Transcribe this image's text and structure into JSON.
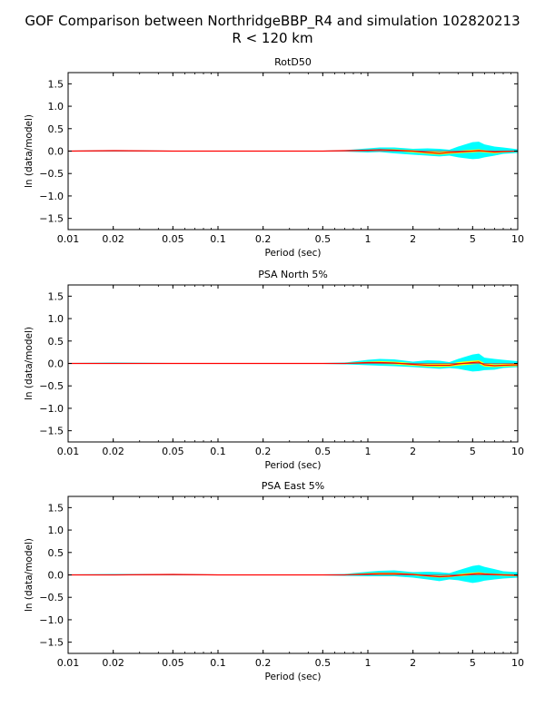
{
  "figure": {
    "title_line1": "GOF Comparison between NorthridgeBBP_R4 and simulation 102820213",
    "title_line2": "R < 120 km"
  },
  "colors": {
    "band_outer": "#00ffff",
    "band_inner": "#ffff00",
    "mean_line": "#ff0000",
    "zero_line": "#7f7f7f"
  },
  "chart_data": [
    {
      "type": "area",
      "title": "RotD50",
      "xlabel": "Period (sec)",
      "ylabel": "ln (data/model)",
      "xscale": "log",
      "xlim": [
        0.01,
        10
      ],
      "ylim": [
        -1.75,
        1.75
      ],
      "xticks": [
        0.01,
        0.02,
        0.05,
        0.1,
        0.2,
        0.5,
        1,
        2,
        5,
        10
      ],
      "xtick_labels": [
        "0.01",
        "0.02",
        "0.05",
        "0.1",
        "0.2",
        "0.5",
        "1",
        "2",
        "5",
        "10"
      ],
      "yticks": [
        -1.5,
        -1.0,
        -0.5,
        0.0,
        0.5,
        1.0,
        1.5
      ],
      "ytick_labels": [
        "−1.5",
        "−1.0",
        "−0.5",
        "0.0",
        "0.5",
        "1.0",
        "1.5"
      ],
      "x": [
        0.01,
        0.02,
        0.05,
        0.1,
        0.2,
        0.5,
        0.7,
        1.0,
        1.2,
        1.5,
        2.0,
        2.5,
        3.0,
        3.5,
        4.0,
        5.0,
        5.5,
        6.0,
        7.0,
        8.0,
        10.0
      ],
      "mean": [
        0.0,
        0.01,
        0.0,
        0.0,
        0.0,
        0.0,
        0.01,
        0.02,
        0.03,
        0.02,
        0.0,
        -0.03,
        -0.05,
        -0.03,
        -0.02,
        0.0,
        0.01,
        0.0,
        -0.02,
        -0.01,
        0.0
      ],
      "upper": [
        0.01,
        0.02,
        0.01,
        0.01,
        0.01,
        0.01,
        0.02,
        0.06,
        0.08,
        0.08,
        0.05,
        0.06,
        0.05,
        0.03,
        0.1,
        0.2,
        0.21,
        0.15,
        0.1,
        0.08,
        0.04
      ],
      "lower": [
        -0.01,
        0.0,
        -0.01,
        -0.01,
        -0.01,
        -0.01,
        -0.01,
        -0.03,
        -0.02,
        -0.05,
        -0.08,
        -0.1,
        -0.12,
        -0.1,
        -0.14,
        -0.18,
        -0.17,
        -0.14,
        -0.1,
        -0.06,
        -0.04
      ],
      "upper_inner": [
        0.005,
        0.015,
        0.005,
        0.005,
        0.005,
        0.005,
        0.015,
        0.03,
        0.04,
        0.04,
        0.02,
        0.0,
        -0.02,
        0.0,
        0.01,
        0.03,
        0.04,
        0.02,
        0.0,
        0.0,
        0.01
      ],
      "lower_inner": [
        -0.005,
        0.005,
        -0.005,
        -0.005,
        -0.005,
        -0.005,
        0.005,
        0.01,
        0.02,
        0.0,
        -0.03,
        -0.06,
        -0.08,
        -0.06,
        -0.05,
        -0.03,
        -0.02,
        -0.03,
        -0.05,
        -0.03,
        -0.01
      ]
    },
    {
      "type": "area",
      "title": "PSA North 5%",
      "xlabel": "Period (sec)",
      "ylabel": "ln (data/model)",
      "xscale": "log",
      "xlim": [
        0.01,
        10
      ],
      "ylim": [
        -1.75,
        1.75
      ],
      "xticks": [
        0.01,
        0.02,
        0.05,
        0.1,
        0.2,
        0.5,
        1,
        2,
        5,
        10
      ],
      "xtick_labels": [
        "0.01",
        "0.02",
        "0.05",
        "0.1",
        "0.2",
        "0.5",
        "1",
        "2",
        "5",
        "10"
      ],
      "yticks": [
        -1.5,
        -1.0,
        -0.5,
        0.0,
        0.5,
        1.0,
        1.5
      ],
      "ytick_labels": [
        "−1.5",
        "−1.0",
        "−0.5",
        "0.0",
        "0.5",
        "1.0",
        "1.5"
      ],
      "x": [
        0.01,
        0.02,
        0.05,
        0.1,
        0.2,
        0.5,
        0.7,
        1.0,
        1.2,
        1.5,
        2.0,
        2.5,
        3.0,
        3.5,
        4.0,
        5.0,
        5.5,
        6.0,
        7.0,
        8.0,
        10.0
      ],
      "mean": [
        0.0,
        0.0,
        0.0,
        0.0,
        0.0,
        0.0,
        0.0,
        0.02,
        0.02,
        0.01,
        -0.02,
        -0.04,
        -0.04,
        -0.04,
        -0.01,
        0.02,
        0.03,
        -0.03,
        -0.05,
        -0.04,
        -0.03
      ],
      "upper": [
        0.01,
        0.02,
        0.01,
        0.01,
        0.01,
        0.01,
        0.02,
        0.08,
        0.1,
        0.09,
        0.04,
        0.07,
        0.06,
        0.03,
        0.1,
        0.2,
        0.22,
        0.13,
        0.1,
        0.08,
        0.05
      ],
      "lower": [
        -0.01,
        -0.01,
        -0.01,
        -0.01,
        -0.01,
        -0.01,
        -0.02,
        -0.04,
        -0.05,
        -0.06,
        -0.08,
        -0.1,
        -0.12,
        -0.1,
        -0.12,
        -0.18,
        -0.17,
        -0.15,
        -0.14,
        -0.1,
        -0.08
      ],
      "upper_inner": [
        0.005,
        0.005,
        0.005,
        0.005,
        0.005,
        0.005,
        0.01,
        0.04,
        0.05,
        0.04,
        0.01,
        -0.01,
        0.0,
        -0.01,
        0.03,
        0.06,
        0.07,
        0.01,
        -0.02,
        -0.01,
        0.0
      ],
      "lower_inner": [
        -0.005,
        -0.005,
        -0.005,
        -0.005,
        -0.005,
        -0.005,
        -0.01,
        0.0,
        -0.01,
        -0.02,
        -0.05,
        -0.07,
        -0.08,
        -0.07,
        -0.05,
        -0.02,
        -0.01,
        -0.07,
        -0.08,
        -0.07,
        -0.06
      ]
    },
    {
      "type": "area",
      "title": "PSA East 5%",
      "xlabel": "Period (sec)",
      "ylabel": "ln (data/model)",
      "xscale": "log",
      "xlim": [
        0.01,
        10
      ],
      "ylim": [
        -1.75,
        1.75
      ],
      "xticks": [
        0.01,
        0.02,
        0.05,
        0.1,
        0.2,
        0.5,
        1,
        2,
        5,
        10
      ],
      "xtick_labels": [
        "0.01",
        "0.02",
        "0.05",
        "0.1",
        "0.2",
        "0.5",
        "1",
        "2",
        "5",
        "10"
      ],
      "yticks": [
        -1.5,
        -1.0,
        -0.5,
        0.0,
        0.5,
        1.0,
        1.5
      ],
      "ytick_labels": [
        "−1.5",
        "−1.0",
        "−0.5",
        "0.0",
        "0.5",
        "1.0",
        "1.5"
      ],
      "x": [
        0.01,
        0.02,
        0.05,
        0.1,
        0.2,
        0.5,
        0.7,
        1.0,
        1.2,
        1.5,
        2.0,
        2.5,
        3.0,
        3.5,
        4.0,
        5.0,
        5.5,
        6.0,
        7.0,
        8.0,
        10.0
      ],
      "mean": [
        0.0,
        0.0,
        0.01,
        0.0,
        0.0,
        0.0,
        0.0,
        0.02,
        0.03,
        0.03,
        0.01,
        -0.02,
        -0.04,
        -0.03,
        -0.01,
        0.02,
        0.03,
        0.02,
        0.01,
        0.0,
        -0.01
      ],
      "upper": [
        0.01,
        0.02,
        0.02,
        0.01,
        0.01,
        0.01,
        0.02,
        0.07,
        0.09,
        0.1,
        0.06,
        0.07,
        0.06,
        0.04,
        0.1,
        0.2,
        0.22,
        0.18,
        0.13,
        0.08,
        0.06
      ],
      "lower": [
        -0.01,
        -0.01,
        -0.01,
        -0.01,
        -0.01,
        -0.01,
        -0.02,
        -0.03,
        -0.03,
        -0.03,
        -0.06,
        -0.1,
        -0.14,
        -0.1,
        -0.12,
        -0.18,
        -0.16,
        -0.13,
        -0.1,
        -0.08,
        -0.06
      ],
      "upper_inner": [
        0.005,
        0.005,
        0.015,
        0.005,
        0.005,
        0.005,
        0.01,
        0.04,
        0.05,
        0.05,
        0.03,
        0.0,
        -0.02,
        -0.01,
        0.02,
        0.05,
        0.06,
        0.04,
        0.03,
        0.02,
        0.01
      ],
      "lower_inner": [
        -0.005,
        -0.005,
        0.005,
        -0.005,
        -0.005,
        -0.005,
        -0.01,
        0.0,
        0.01,
        0.01,
        -0.01,
        -0.04,
        -0.06,
        -0.05,
        -0.03,
        -0.01,
        0.0,
        0.0,
        -0.01,
        -0.02,
        -0.03
      ]
    }
  ]
}
